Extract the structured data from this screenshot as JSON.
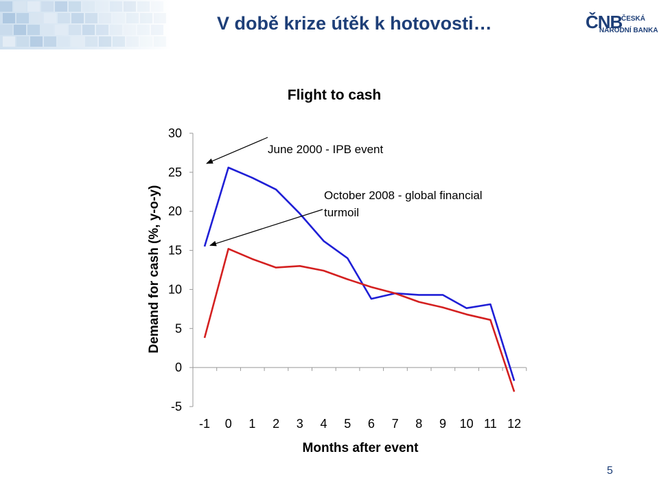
{
  "slide": {
    "title": "V době krize útěk k hotovosti…",
    "page_number": "5"
  },
  "logo": {
    "mark": "ČNB",
    "line1": "ČESKÁ",
    "line2": "NÁRODNÍ BANKA"
  },
  "chart_data": {
    "type": "line",
    "title": "Flight to cash",
    "xlabel": "Months after event",
    "ylabel": "Demand for cash (%, y-o-y)",
    "x": [
      -1,
      0,
      1,
      2,
      3,
      4,
      5,
      6,
      7,
      8,
      9,
      10,
      11,
      12
    ],
    "ylim": [
      -5,
      30
    ],
    "yticks": [
      -5,
      0,
      5,
      10,
      15,
      20,
      25,
      30
    ],
    "grid": false,
    "series": [
      {
        "values": [
          15.5,
          25.6,
          24.3,
          22.8,
          19.7,
          16.2,
          14.0,
          8.8,
          9.5,
          9.3,
          9.3,
          7.6,
          8.1,
          -1.7
        ],
        "color": "#1f1fd6"
      },
      {
        "values": [
          3.8,
          15.2,
          13.9,
          12.8,
          13.0,
          12.4,
          11.3,
          10.3,
          9.5,
          8.4,
          7.7,
          6.8,
          6.1,
          -3.1
        ],
        "color": "#d42020"
      }
    ],
    "annotations": [
      {
        "text": "June 2000 - IPB event",
        "points_to": {
          "x": 0,
          "y": 25.6
        }
      },
      {
        "text_lines": [
          "October 2008 - global financial",
          "turmoil"
        ],
        "points_to": {
          "x": 0,
          "y": 15.2
        }
      }
    ]
  }
}
